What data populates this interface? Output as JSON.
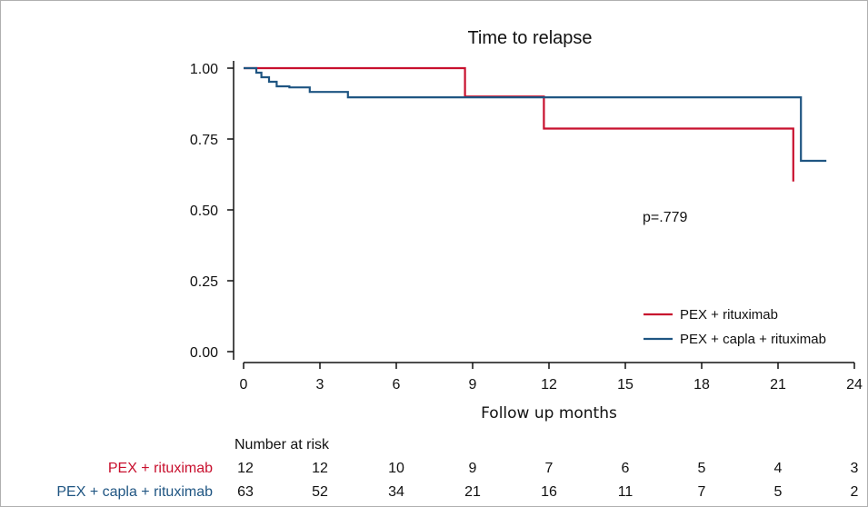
{
  "chart_data": {
    "type": "line",
    "step": true,
    "title": "Time to relapse",
    "xlabel": "Follow up months",
    "ylabel": "",
    "xlim": [
      0,
      24
    ],
    "ylim": [
      0,
      1
    ],
    "xticks": [
      "0",
      "3",
      "6",
      "9",
      "12",
      "15",
      "18",
      "21",
      "24"
    ],
    "yticks": [
      "0.00",
      "0.25",
      "0.50",
      "0.75",
      "1.00"
    ],
    "grid": false,
    "legend_position": "bottom-right",
    "annotation": "p=.779",
    "series": [
      {
        "name": "PEX + rituximab",
        "color": "#c8102e",
        "points": [
          [
            0,
            1.0
          ],
          [
            8.7,
            1.0
          ],
          [
            8.7,
            0.9
          ],
          [
            11.8,
            0.9
          ],
          [
            11.8,
            0.787
          ],
          [
            21.6,
            0.787
          ],
          [
            21.6,
            0.6
          ]
        ]
      },
      {
        "name": "PEX + capla + rituximab",
        "color": "#1f5582",
        "points": [
          [
            0,
            1.0
          ],
          [
            0.5,
            1.0
          ],
          [
            0.5,
            0.984
          ],
          [
            0.7,
            0.984
          ],
          [
            0.7,
            0.968
          ],
          [
            1.0,
            0.968
          ],
          [
            1.0,
            0.952
          ],
          [
            1.3,
            0.952
          ],
          [
            1.3,
            0.936
          ],
          [
            1.8,
            0.936
          ],
          [
            1.8,
            0.932
          ],
          [
            2.6,
            0.932
          ],
          [
            2.6,
            0.916
          ],
          [
            4.1,
            0.916
          ],
          [
            4.1,
            0.897
          ],
          [
            21.9,
            0.897
          ],
          [
            21.9,
            0.673
          ],
          [
            22.9,
            0.673
          ]
        ]
      }
    ],
    "risk_table": {
      "title": "Number at risk",
      "rows": [
        {
          "label": "PEX + rituximab",
          "color": "#c8102e",
          "values": [
            12,
            12,
            10,
            9,
            7,
            6,
            5,
            4,
            3
          ]
        },
        {
          "label": "PEX + capla + rituximab",
          "color": "#1f5582",
          "values": [
            63,
            52,
            34,
            21,
            16,
            11,
            7,
            5,
            2
          ]
        }
      ]
    }
  }
}
